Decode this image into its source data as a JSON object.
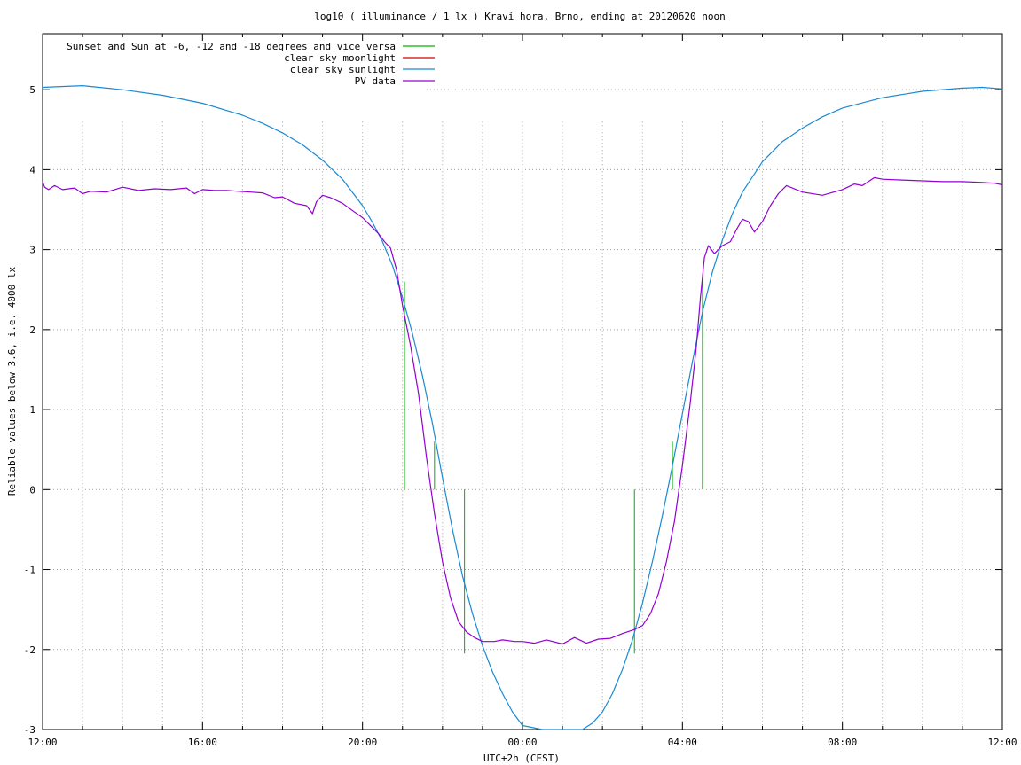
{
  "chart_data": {
    "type": "line",
    "title": "log10 ( illuminance / 1 lx ) Kravi hora, Brno, ending at 20120620 noon",
    "xlabel": "UTC+2h (CEST)",
    "ylabel": "Reliable values below 3.6, i.e. 4000 lx",
    "x_unit": "hours",
    "xlim": [
      12,
      36
    ],
    "ylim": [
      -3,
      5.7
    ],
    "x_tick_values": [
      12,
      16,
      20,
      24,
      28,
      32,
      36
    ],
    "x_tick_labels": [
      "12:00",
      "16:00",
      "20:00",
      "00:00",
      "04:00",
      "08:00",
      "12:00"
    ],
    "y_ticks": [
      -3,
      -2,
      -1,
      0,
      1,
      2,
      3,
      4,
      5
    ],
    "grid": true,
    "legend_position": "top-left",
    "colors": {
      "sun_markers": "#00b000",
      "moonlight": "#d00000",
      "sunlight": "#1a8ad4",
      "pv": "#9400d3",
      "frame": "#000000"
    },
    "series": [
      {
        "name": "Sunset and Sun at -6, -12 and -18 degrees and vice versa",
        "kind": "vertical_markers",
        "markers": [
          {
            "x": 21.05,
            "y_from": 0,
            "y_to": 2.6
          },
          {
            "x": 21.8,
            "y_from": 0,
            "y_to": 0.6
          },
          {
            "x": 22.55,
            "y_from": -2.05,
            "y_to": 0
          },
          {
            "x": 26.8,
            "y_from": -2.05,
            "y_to": 0
          },
          {
            "x": 27.75,
            "y_from": 0,
            "y_to": 0.6
          },
          {
            "x": 28.5,
            "y_from": 0,
            "y_to": 2.6
          }
        ]
      },
      {
        "name": "clear sky moonlight",
        "x": [],
        "y": []
      },
      {
        "name": "clear sky sunlight",
        "x": [
          12.0,
          13.0,
          14.0,
          15.0,
          16.0,
          17.0,
          17.5,
          18.0,
          18.5,
          19.0,
          19.5,
          20.0,
          20.25,
          20.5,
          20.75,
          21.0,
          21.25,
          21.5,
          21.75,
          22.0,
          22.25,
          22.5,
          22.75,
          23.0,
          23.25,
          23.5,
          23.75,
          24.0,
          24.5,
          25.0,
          25.5,
          25.75,
          26.0,
          26.25,
          26.5,
          26.75,
          27.0,
          27.25,
          27.5,
          27.75,
          28.0,
          28.25,
          28.5,
          28.75,
          29.0,
          29.25,
          29.5,
          30.0,
          30.5,
          31.0,
          31.5,
          32.0,
          33.0,
          34.0,
          35.0,
          35.5,
          36.0
        ],
        "y": [
          5.03,
          5.05,
          5.0,
          4.93,
          4.83,
          4.68,
          4.58,
          4.46,
          4.31,
          4.12,
          3.88,
          3.55,
          3.34,
          3.1,
          2.8,
          2.4,
          1.95,
          1.42,
          0.82,
          0.15,
          -0.5,
          -1.08,
          -1.55,
          -1.95,
          -2.28,
          -2.55,
          -2.78,
          -2.95,
          -3.08,
          -3.1,
          -3.02,
          -2.92,
          -2.78,
          -2.55,
          -2.25,
          -1.88,
          -1.42,
          -0.9,
          -0.32,
          0.3,
          0.95,
          1.6,
          2.22,
          2.72,
          3.12,
          3.45,
          3.72,
          4.1,
          4.35,
          4.52,
          4.66,
          4.77,
          4.9,
          4.98,
          5.02,
          5.03,
          5.01
        ]
      },
      {
        "name": "PV data",
        "x": [
          12.0,
          12.05,
          12.15,
          12.3,
          12.5,
          12.8,
          13.0,
          13.2,
          13.6,
          14.0,
          14.4,
          14.8,
          15.2,
          15.6,
          15.8,
          16.0,
          16.3,
          16.6,
          16.9,
          17.2,
          17.5,
          17.8,
          18.0,
          18.3,
          18.6,
          18.75,
          18.85,
          19.0,
          19.2,
          19.5,
          19.8,
          20.0,
          20.2,
          20.4,
          20.55,
          20.7,
          20.85,
          21.0,
          21.2,
          21.4,
          21.6,
          21.8,
          22.0,
          22.2,
          22.4,
          22.6,
          22.8,
          23.0,
          23.3,
          23.5,
          23.8,
          24.0,
          24.3,
          24.6,
          25.0,
          25.3,
          25.6,
          25.9,
          26.2,
          26.5,
          26.8,
          27.0,
          27.2,
          27.4,
          27.6,
          27.8,
          28.0,
          28.2,
          28.35,
          28.45,
          28.55,
          28.65,
          28.8,
          29.0,
          29.2,
          29.35,
          29.5,
          29.65,
          29.8,
          30.0,
          30.2,
          30.4,
          30.6,
          31.0,
          31.5,
          32.0,
          32.3,
          32.5,
          32.8,
          33.0,
          33.5,
          34.0,
          34.5,
          35.0,
          35.5,
          35.8,
          36.0
        ],
        "y": [
          3.85,
          3.78,
          3.75,
          3.8,
          3.75,
          3.77,
          3.7,
          3.73,
          3.72,
          3.78,
          3.74,
          3.76,
          3.75,
          3.77,
          3.7,
          3.75,
          3.74,
          3.74,
          3.73,
          3.72,
          3.71,
          3.65,
          3.66,
          3.58,
          3.55,
          3.45,
          3.6,
          3.68,
          3.65,
          3.58,
          3.47,
          3.4,
          3.3,
          3.2,
          3.1,
          3.02,
          2.75,
          2.3,
          1.8,
          1.2,
          0.4,
          -0.3,
          -0.9,
          -1.35,
          -1.65,
          -1.78,
          -1.85,
          -1.9,
          -1.9,
          -1.88,
          -1.9,
          -1.9,
          -1.92,
          -1.88,
          -1.93,
          -1.85,
          -1.92,
          -1.87,
          -1.86,
          -1.8,
          -1.75,
          -1.7,
          -1.55,
          -1.3,
          -0.9,
          -0.4,
          0.3,
          1.1,
          1.8,
          2.4,
          2.9,
          3.05,
          2.95,
          3.05,
          3.1,
          3.25,
          3.38,
          3.35,
          3.22,
          3.35,
          3.55,
          3.7,
          3.8,
          3.72,
          3.68,
          3.75,
          3.82,
          3.8,
          3.9,
          3.88,
          3.87,
          3.86,
          3.85,
          3.85,
          3.84,
          3.83,
          3.81
        ]
      }
    ]
  }
}
